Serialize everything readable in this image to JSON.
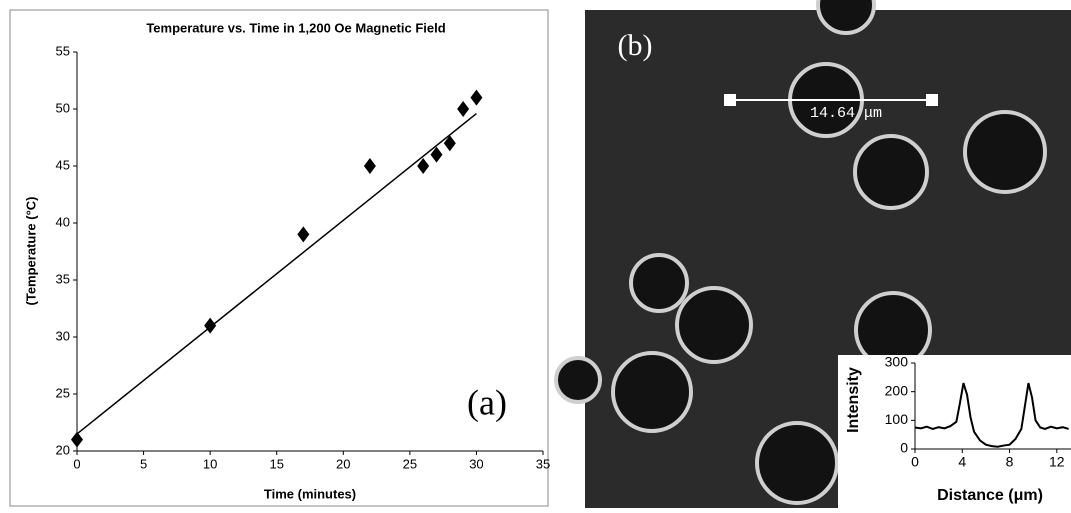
{
  "chart_data": [
    {
      "type": "scatter",
      "title": "Temperature vs. Time in 1,200 Oe Magnetic Field",
      "x_label": "Time (minutes)",
      "y_label": "(Temperature (°C)",
      "annotation": "(a)",
      "x": [
        0,
        10,
        17,
        22,
        26,
        27,
        28,
        29,
        30
      ],
      "values": [
        21,
        31,
        39,
        45,
        45,
        46,
        47,
        50,
        51
      ],
      "color": "#000000",
      "trendline": {
        "x": [
          0,
          30
        ],
        "values": [
          21.5,
          49.6
        ]
      },
      "xlim": [
        0,
        35
      ],
      "xticks": [
        0,
        5,
        10,
        15,
        20,
        25,
        30,
        35
      ],
      "ylim": [
        20,
        55
      ],
      "yticks": [
        20,
        25,
        30,
        35,
        40,
        45,
        50,
        55
      ]
    },
    {
      "type": "line",
      "x_label": "Distance (μm)",
      "y_label": "Intensity",
      "x": [
        0,
        0.5,
        1,
        1.5,
        2,
        2.5,
        3,
        3.5,
        3.8,
        4.1,
        4.4,
        4.7,
        5,
        5.5,
        6,
        6.5,
        7,
        7.5,
        8,
        8.5,
        9,
        9.3,
        9.6,
        9.9,
        10.2,
        10.6,
        11,
        11.5,
        12,
        12.5,
        13
      ],
      "values": [
        75,
        72,
        78,
        70,
        76,
        72,
        80,
        95,
        160,
        230,
        190,
        110,
        60,
        30,
        15,
        10,
        8,
        12,
        15,
        35,
        70,
        150,
        230,
        180,
        100,
        75,
        70,
        78,
        72,
        76,
        70
      ],
      "color": "#000000",
      "xlim": [
        0,
        13.2
      ],
      "xticks": [
        0,
        4,
        8,
        12
      ],
      "ylim": [
        0,
        300
      ],
      "yticks": [
        0,
        100,
        200,
        300
      ]
    }
  ],
  "image": {
    "panel_label": "(b)",
    "scale_label": "14.64 μm"
  }
}
